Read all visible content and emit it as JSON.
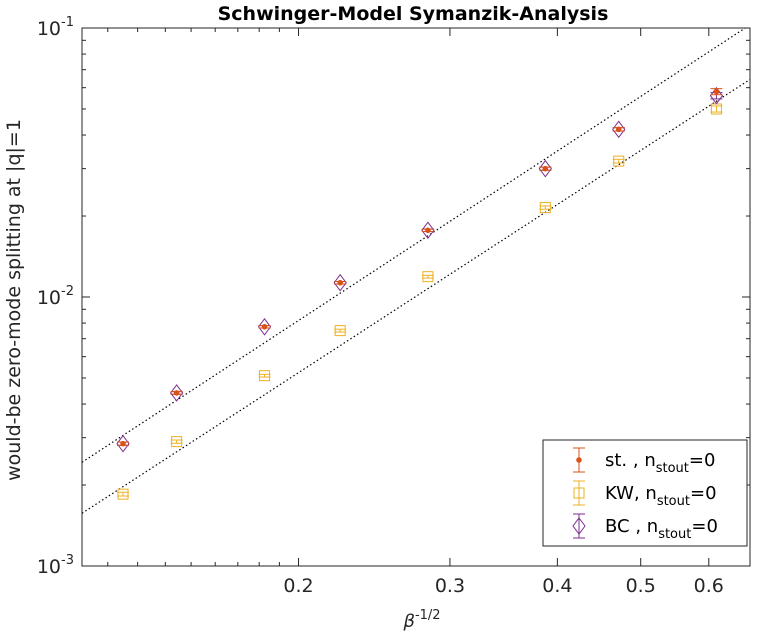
{
  "chart_data": {
    "type": "scatter",
    "title": "Schwinger-Model Symanzik-Analysis",
    "xlabel_base": "β",
    "xlabel_sup": "-1/2",
    "ylabel": "would-be zero-mode splitting at |q|=1",
    "x_scale": "log",
    "y_scale": "log",
    "xlim": [
      0.112,
      0.67
    ],
    "ylim": [
      0.001,
      0.1
    ],
    "x_ticks": [
      {
        "value": 0.2,
        "label": "0.2"
      },
      {
        "value": 0.3,
        "label": "0.3"
      },
      {
        "value": 0.4,
        "label": "0.4"
      },
      {
        "value": 0.5,
        "label": "0.5"
      },
      {
        "value": 0.6,
        "label": "0.6"
      }
    ],
    "y_ticks": [
      {
        "value": 0.001,
        "base": "10",
        "exp": "-3"
      },
      {
        "value": 0.01,
        "base": "10",
        "exp": "-2"
      },
      {
        "value": 0.1,
        "base": "10",
        "exp": "-1"
      }
    ],
    "grid": false,
    "legend_position": "bottom-right",
    "series": [
      {
        "label_main": "st. , n",
        "label_sub": "stout",
        "label_tail": "=0",
        "marker": "dot",
        "color": "#d95319",
        "x": [
          0.125,
          0.1443,
          0.1826,
          0.2236,
          0.2828,
          0.3873,
          0.4714,
          0.6124
        ],
        "y": [
          0.00285,
          0.0044,
          0.00775,
          0.0113,
          0.0177,
          0.03,
          0.042,
          0.058
        ],
        "err": [
          4e-05,
          5e-05,
          8e-05,
          0.00012,
          0.00018,
          0.0004,
          0.0006,
          0.0015
        ]
      },
      {
        "label_main": "KW, n",
        "label_sub": "stout",
        "label_tail": "=0",
        "marker": "square",
        "color": "#edb120",
        "x": [
          0.125,
          0.1443,
          0.1826,
          0.2236,
          0.2828,
          0.3873,
          0.4714,
          0.6124
        ],
        "y": [
          0.00185,
          0.0029,
          0.0051,
          0.0075,
          0.0119,
          0.0215,
          0.032,
          0.05
        ],
        "err": [
          3e-05,
          4e-05,
          6e-05,
          9e-05,
          0.00014,
          0.0003,
          0.0005,
          0.0013
        ]
      },
      {
        "label_main": "BC , n",
        "label_sub": "stout",
        "label_tail": "=0",
        "marker": "diamond",
        "color": "#7e2f8e",
        "x": [
          0.125,
          0.1443,
          0.1826,
          0.2236,
          0.2828,
          0.3873,
          0.4714,
          0.6124
        ],
        "y": [
          0.00285,
          0.0044,
          0.00775,
          0.0113,
          0.0177,
          0.03,
          0.042,
          0.056
        ],
        "err": [
          4e-05,
          5e-05,
          8e-05,
          0.00012,
          0.00018,
          0.0004,
          0.0006,
          0.0015
        ]
      }
    ],
    "fit_lines": [
      {
        "x": [
          0.112,
          0.67
        ],
        "y": [
          0.00243,
          0.1027
        ],
        "style": "dotted",
        "color": "#000000"
      },
      {
        "x": [
          0.112,
          0.67
        ],
        "y": [
          0.00157,
          0.0644
        ],
        "style": "dotted",
        "color": "#000000"
      }
    ]
  }
}
